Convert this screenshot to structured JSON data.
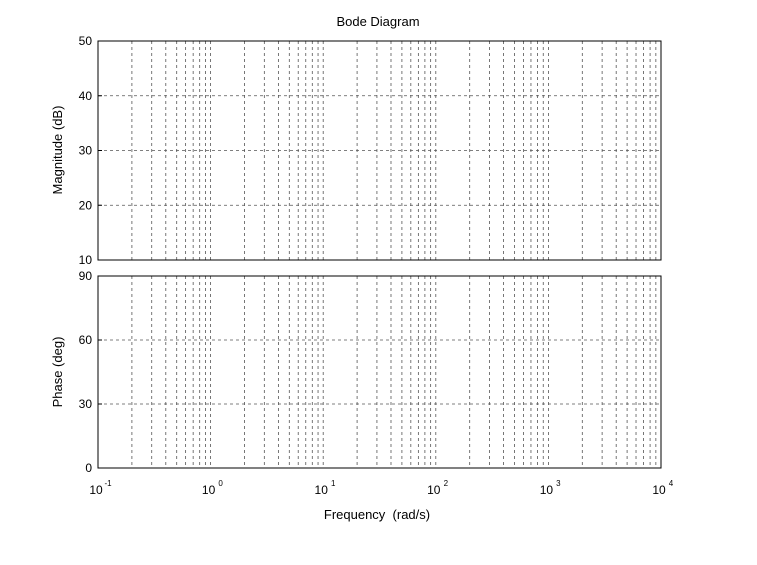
{
  "chart_data": {
    "type": "line",
    "title": "Bode Diagram",
    "xlabel": "Frequency  (rad/s)",
    "xscale": "log",
    "xlim": [
      0.1,
      10000
    ],
    "x_ticks": [
      {
        "base": "10",
        "exp": "-1"
      },
      {
        "base": "10",
        "exp": "0"
      },
      {
        "base": "10",
        "exp": "1"
      },
      {
        "base": "10",
        "exp": "2"
      },
      {
        "base": "10",
        "exp": "3"
      },
      {
        "base": "10",
        "exp": "4"
      }
    ],
    "grid": true,
    "panels": [
      {
        "name": "magnitude",
        "ylabel": "Magnitude (dB)",
        "ylim": [
          10,
          50
        ],
        "yticks": [
          "10",
          "20",
          "30",
          "40",
          "50"
        ],
        "series": []
      },
      {
        "name": "phase",
        "ylabel": "Phase (deg)",
        "ylim": [
          0,
          90
        ],
        "yticks": [
          "0",
          "30",
          "60",
          "90"
        ],
        "series": []
      }
    ]
  }
}
